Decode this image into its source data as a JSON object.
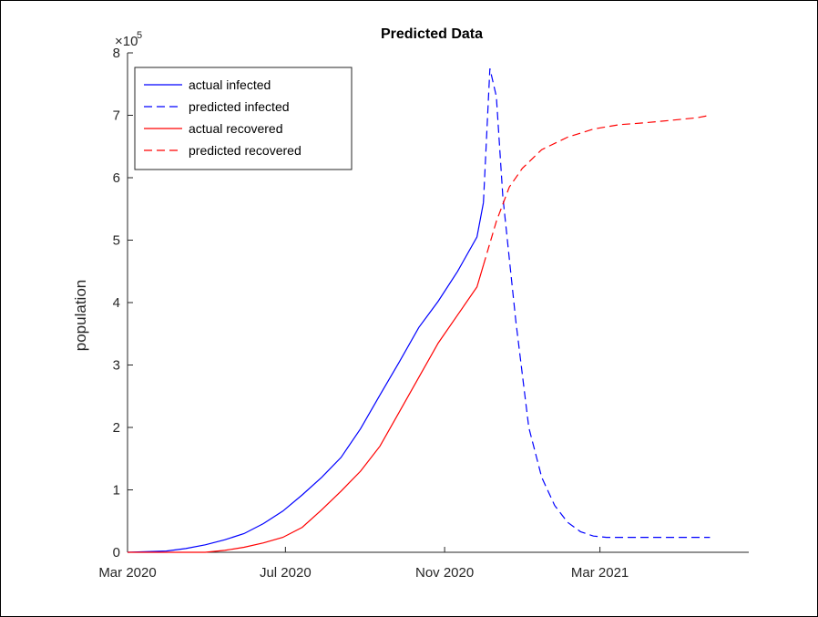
{
  "chart_data": {
    "type": "line",
    "title": "Predicted Data",
    "xlabel": "",
    "ylabel": "population",
    "y_exponent_label": "×10",
    "y_exponent_power": "5",
    "x_tick_labels": [
      "Mar 2020",
      "Jul 2020",
      "Nov 2020",
      "Mar 2021"
    ],
    "x_tick_days": [
      0,
      122,
      245,
      365
    ],
    "x_axis_date_range": [
      "2020-03-01",
      "2021-06-25"
    ],
    "y_ticks": [
      0,
      1,
      2,
      3,
      4,
      5,
      6,
      7,
      8
    ],
    "y_tick_labels": [
      "0",
      "1",
      "2",
      "3",
      "4",
      "5",
      "6",
      "7",
      "8"
    ],
    "ylim": [
      0,
      8
    ],
    "grid": false,
    "legend_position": "top-left",
    "series": [
      {
        "name": "actual infected",
        "color": "#0000ff",
        "dash": "solid",
        "x": [
          0,
          30,
          45,
          60,
          75,
          90,
          105,
          120,
          135,
          150,
          165,
          180,
          195,
          210,
          225,
          240,
          255,
          270,
          275
        ],
        "y": [
          0,
          0.02,
          0.06,
          0.12,
          0.2,
          0.3,
          0.46,
          0.66,
          0.92,
          1.2,
          1.52,
          1.98,
          2.52,
          3.05,
          3.6,
          4.02,
          4.5,
          5.05,
          5.6
        ]
      },
      {
        "name": "predicted infected",
        "color": "#0000ff",
        "dash": "dashed",
        "x": [
          275,
          280,
          285,
          290,
          300,
          310,
          320,
          330,
          340,
          350,
          360,
          370,
          380,
          400,
          420,
          450
        ],
        "y": [
          5.6,
          7.75,
          7.3,
          5.7,
          3.7,
          2.0,
          1.2,
          0.75,
          0.48,
          0.33,
          0.26,
          0.24,
          0.24,
          0.24,
          0.24,
          0.24
        ]
      },
      {
        "name": "actual recovered",
        "color": "#ff0000",
        "dash": "solid",
        "x": [
          0,
          60,
          75,
          90,
          105,
          120,
          135,
          150,
          165,
          180,
          195,
          210,
          225,
          240,
          255,
          270,
          275
        ],
        "y": [
          0,
          0,
          0.03,
          0.08,
          0.15,
          0.24,
          0.4,
          0.68,
          0.98,
          1.3,
          1.7,
          2.25,
          2.8,
          3.35,
          3.8,
          4.25,
          4.6
        ]
      },
      {
        "name": "predicted recovered",
        "color": "#ff0000",
        "dash": "dashed",
        "x": [
          275,
          285,
          295,
          305,
          320,
          340,
          360,
          380,
          400,
          420,
          440,
          450
        ],
        "y": [
          4.6,
          5.3,
          5.85,
          6.15,
          6.45,
          6.65,
          6.78,
          6.85,
          6.88,
          6.92,
          6.96,
          7.0
        ]
      }
    ]
  }
}
